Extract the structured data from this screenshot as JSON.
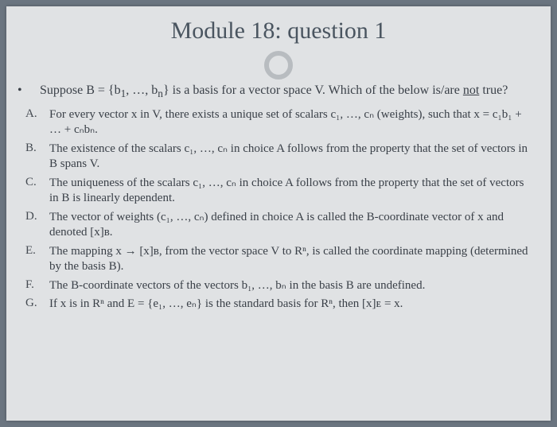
{
  "title": "Module 18: question 1",
  "intro": "Suppose B = {b₁, …, bₙ} is a basis for a vector space V. Which of the below is/are not true?",
  "intro_underlined": "not",
  "choices": [
    {
      "label": "A.",
      "text": "For every vector x in V, there exists a unique set of scalars c₁, …, cₙ (weights), such that x = c₁b₁ + … + cₙbₙ."
    },
    {
      "label": "B.",
      "text": "The existence of the scalars c₁, …, cₙ in choice A follows from the property that the set of vectors in B spans V."
    },
    {
      "label": "C.",
      "text": "The uniqueness of the scalars c₁, …, cₙ in choice A follows from the property that the set of vectors in B is linearly dependent."
    },
    {
      "label": "D.",
      "text": "The vector of weights (c₁, …, cₙ) defined in choice A is called the B-coordinate vector of x and denoted [x]ʙ."
    },
    {
      "label": "E.",
      "text": "The mapping x → [x]ʙ, from the vector space V to Rⁿ, is called the coordinate mapping (determined by the basis B)."
    },
    {
      "label": "F.",
      "text": "The B-coordinate vectors of the vectors b₁, …, bₙ in the basis B are undefined."
    },
    {
      "label": "G.",
      "text": "If x is in Rⁿ and E = {e₁, …, eₙ} is the standard basis for Rⁿ, then [x]ᴇ = x."
    }
  ]
}
